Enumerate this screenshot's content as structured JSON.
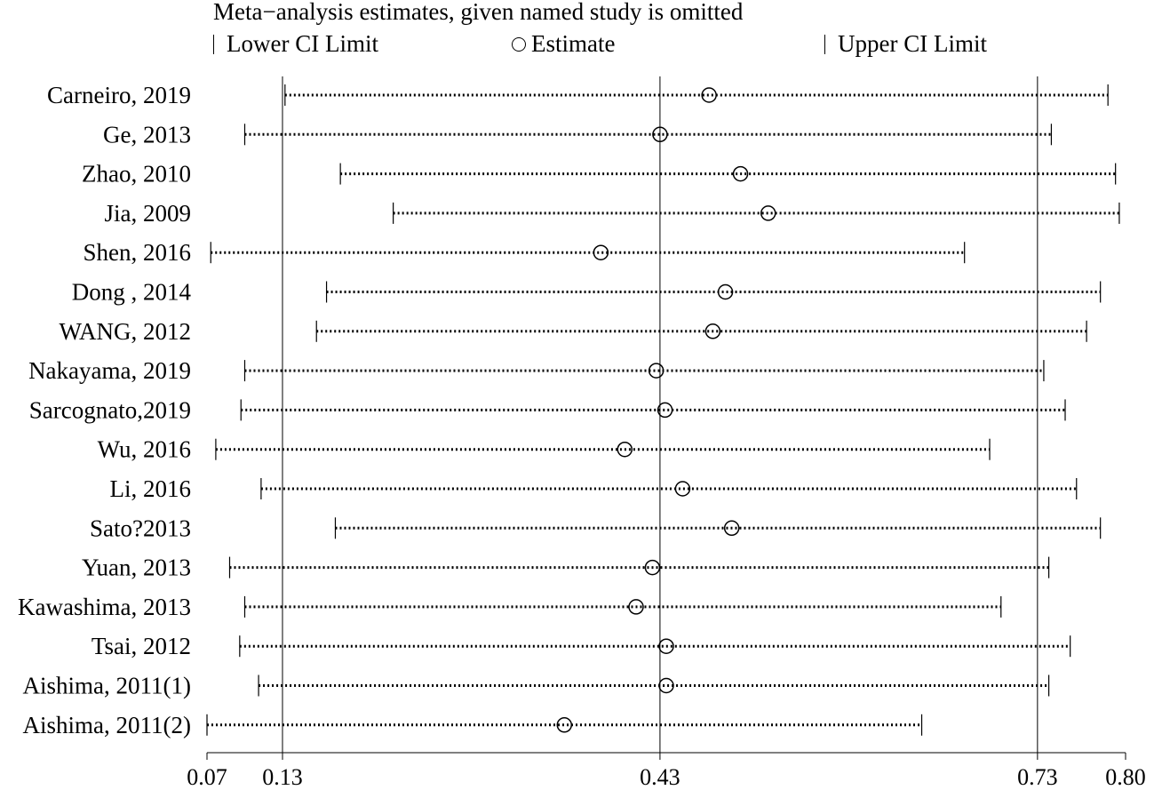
{
  "chart_data": {
    "type": "forest",
    "title": "Meta−analysis estimates, given named study is omitted",
    "legend": {
      "lower": "Lower CI Limit",
      "estimate": "Estimate",
      "upper": "Upper CI Limit"
    },
    "xlim": [
      0.07,
      0.8
    ],
    "ticks": [
      0.07,
      0.13,
      0.43,
      0.73,
      0.8
    ],
    "tick_labels": [
      "0.07",
      "0.13",
      "0.43",
      "0.73",
      "0.80"
    ],
    "reference_lines": [
      0.13,
      0.43,
      0.73
    ],
    "studies": [
      {
        "label": "Carneiro, 2019",
        "lower": 0.132,
        "estimate": 0.469,
        "upper": 0.786
      },
      {
        "label": "Ge, 2013",
        "lower": 0.1,
        "estimate": 0.43,
        "upper": 0.741
      },
      {
        "label": "Zhao, 2010",
        "lower": 0.176,
        "estimate": 0.494,
        "upper": 0.792
      },
      {
        "label": "Jia, 2009",
        "lower": 0.218,
        "estimate": 0.516,
        "upper": 0.795
      },
      {
        "label": "Shen, 2016",
        "lower": 0.073,
        "estimate": 0.383,
        "upper": 0.672
      },
      {
        "label": "Dong , 2014",
        "lower": 0.165,
        "estimate": 0.482,
        "upper": 0.78
      },
      {
        "label": "WANG, 2012",
        "lower": 0.157,
        "estimate": 0.472,
        "upper": 0.769
      },
      {
        "label": "Nakayama, 2019",
        "lower": 0.1,
        "estimate": 0.427,
        "upper": 0.735
      },
      {
        "label": "Sarcognato,2019",
        "lower": 0.097,
        "estimate": 0.434,
        "upper": 0.752
      },
      {
        "label": "Wu, 2016",
        "lower": 0.077,
        "estimate": 0.402,
        "upper": 0.692
      },
      {
        "label": "Li, 2016",
        "lower": 0.113,
        "estimate": 0.448,
        "upper": 0.761
      },
      {
        "label": "Sato?2013",
        "lower": 0.172,
        "estimate": 0.487,
        "upper": 0.78
      },
      {
        "label": "Yuan, 2013",
        "lower": 0.088,
        "estimate": 0.424,
        "upper": 0.739
      },
      {
        "label": "Kawashima, 2013",
        "lower": 0.1,
        "estimate": 0.411,
        "upper": 0.701
      },
      {
        "label": "Tsai, 2012",
        "lower": 0.096,
        "estimate": 0.435,
        "upper": 0.756
      },
      {
        "label": "Aishima, 2011(1)",
        "lower": 0.111,
        "estimate": 0.435,
        "upper": 0.739
      },
      {
        "label": "Aishima, 2011(2)",
        "lower": 0.07,
        "estimate": 0.354,
        "upper": 0.638
      }
    ]
  }
}
